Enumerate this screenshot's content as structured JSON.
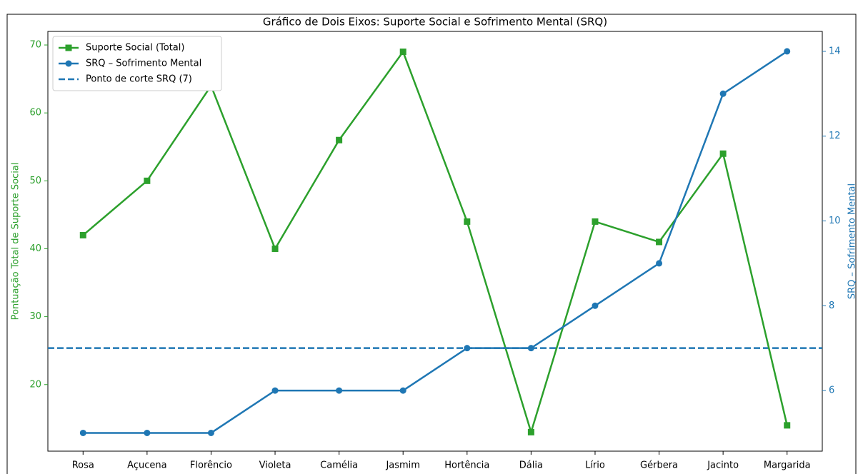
{
  "chart_data": {
    "type": "line",
    "title": "Gráfico de Dois Eixos: Suporte Social e Sofrimento Mental (SRQ)",
    "ylabel": "Pontuação Total de Suporte Social",
    "y2label": "SRQ – Sofrimento Mental",
    "categories": [
      "Rosa",
      "Açucena",
      "Florêncio",
      "Violeta",
      "Camélia",
      "Jasmim",
      "Hortência",
      "Dália",
      "Lírio",
      "Gérbera",
      "Jacinto",
      "Margarida"
    ],
    "series": [
      {
        "name": "Suporte Social (Total)",
        "color": "#2ca02c",
        "marker": "square",
        "values": [
          42,
          50,
          64,
          40,
          56,
          69,
          44,
          13,
          44,
          41,
          54,
          14
        ]
      },
      {
        "name": "SRQ – Sofrimento Mental",
        "color": "#1f77b4",
        "marker": "circle",
        "axis": "y2",
        "values": [
          5,
          5,
          5,
          6,
          6,
          6,
          7,
          7,
          8,
          9,
          13,
          14
        ]
      }
    ],
    "reference_lines": [
      {
        "name": "Ponto de corte SRQ (7)",
        "value": 7,
        "axis": "y2",
        "color": "#1f77b4",
        "dashed": true
      }
    ],
    "ylim": [
      10.2,
      72
    ],
    "yticks": [
      20,
      30,
      40,
      50,
      60,
      70
    ],
    "y2lim": [
      4.57,
      14.47
    ],
    "y2ticks": [
      6,
      8,
      10,
      12,
      14
    ],
    "legend": "upper left"
  }
}
